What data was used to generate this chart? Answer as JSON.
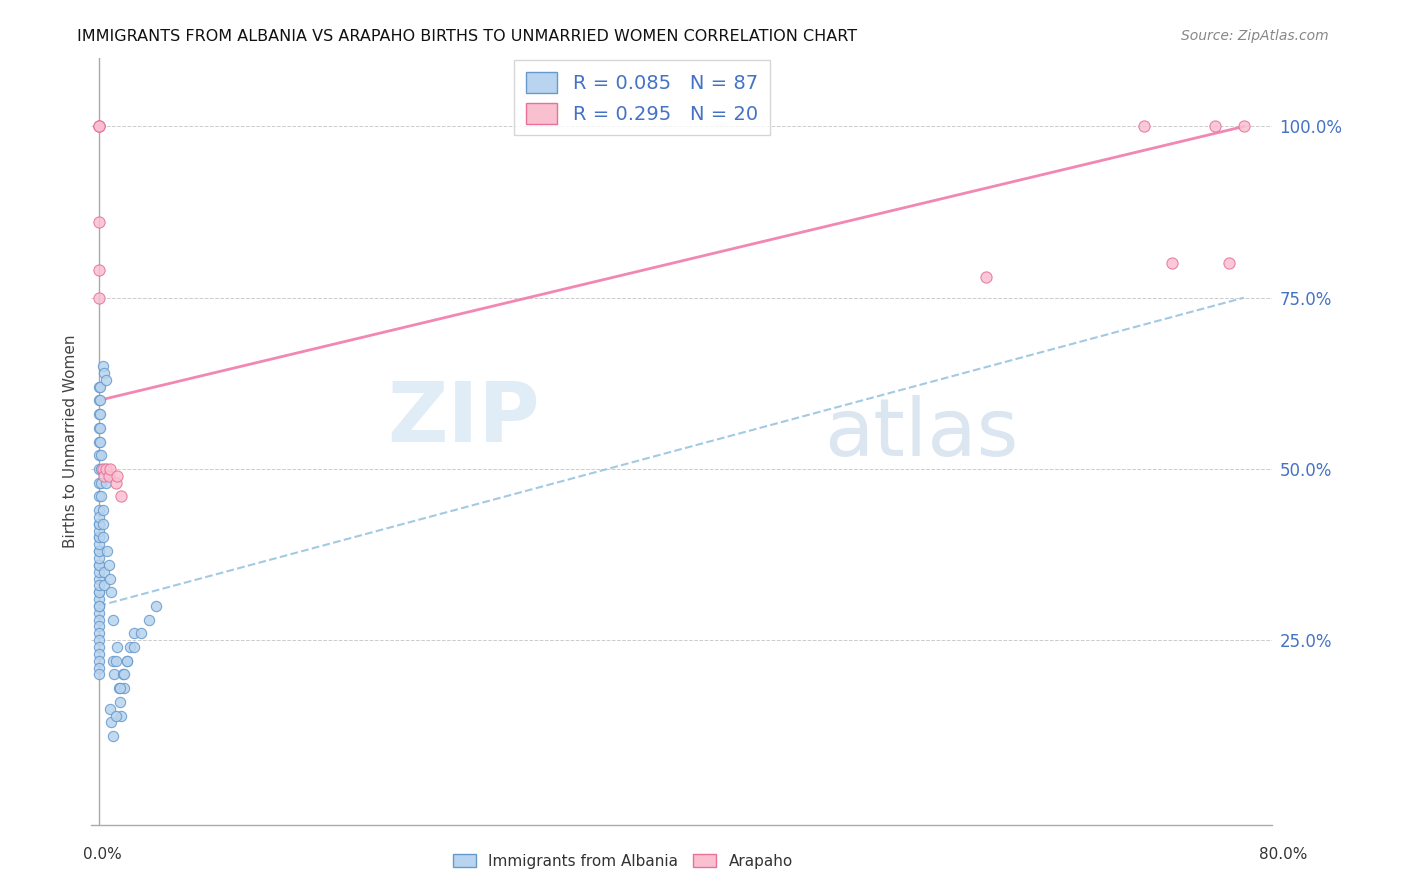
{
  "title": "IMMIGRANTS FROM ALBANIA VS ARAPAHO BIRTHS TO UNMARRIED WOMEN CORRELATION CHART",
  "source": "Source: ZipAtlas.com",
  "ylabel": "Births to Unmarried Women",
  "xlim": [
    -0.005,
    0.82
  ],
  "ylim": [
    -0.02,
    1.1
  ],
  "yticks": [
    0.25,
    0.5,
    0.75,
    1.0
  ],
  "ytick_labels": [
    "25.0%",
    "50.0%",
    "75.0%",
    "100.0%"
  ],
  "blue_color": "#7ab5e0",
  "blue_edge": "#5599cc",
  "pink_color": "#f9b8cc",
  "pink_edge": "#e8709a",
  "blue_trend_color": "#99c4e0",
  "pink_trend_color": "#f07aaa",
  "blue_trend": [
    0.0,
    0.8,
    0.3,
    0.75
  ],
  "pink_trend": [
    0.0,
    0.8,
    0.6,
    1.0
  ],
  "watermark_zip": "ZIP",
  "watermark_atlas": "atlas",
  "legend_top_labels": [
    "R = 0.085   N = 87",
    "R = 0.295   N = 20"
  ],
  "legend_bottom_labels": [
    "Immigrants from Albania",
    "Arapaho"
  ],
  "blue_scatter_x": [
    0.0,
    0.0,
    0.0,
    0.0,
    0.0,
    0.0,
    0.0,
    0.0,
    0.0,
    0.0,
    0.0,
    0.0,
    0.0,
    0.0,
    0.0,
    0.0,
    0.0,
    0.0,
    0.0,
    0.0,
    0.0,
    0.0,
    0.0,
    0.0,
    0.0,
    0.0,
    0.0,
    0.0,
    0.0,
    0.0,
    0.0,
    0.0,
    0.0,
    0.0,
    0.0,
    0.0,
    0.0,
    0.0,
    0.0,
    0.0,
    0.001,
    0.001,
    0.001,
    0.001,
    0.001,
    0.002,
    0.002,
    0.002,
    0.002,
    0.003,
    0.003,
    0.003,
    0.004,
    0.004,
    0.005,
    0.005,
    0.006,
    0.007,
    0.008,
    0.009,
    0.01,
    0.01,
    0.011,
    0.012,
    0.013,
    0.014,
    0.015,
    0.016,
    0.017,
    0.018,
    0.02,
    0.022,
    0.025,
    0.008,
    0.009,
    0.01,
    0.012,
    0.015,
    0.018,
    0.02,
    0.025,
    0.03,
    0.035,
    0.04,
    0.003,
    0.004,
    0.005
  ],
  "blue_scatter_y": [
    0.62,
    0.6,
    0.58,
    0.56,
    0.54,
    0.52,
    0.5,
    0.48,
    0.46,
    0.44,
    0.42,
    0.4,
    0.38,
    0.36,
    0.34,
    0.32,
    0.3,
    0.29,
    0.28,
    0.27,
    0.26,
    0.25,
    0.24,
    0.23,
    0.22,
    0.21,
    0.2,
    0.31,
    0.3,
    0.32,
    0.33,
    0.35,
    0.36,
    0.37,
    0.38,
    0.39,
    0.4,
    0.41,
    0.42,
    0.43,
    0.62,
    0.6,
    0.58,
    0.56,
    0.54,
    0.52,
    0.5,
    0.48,
    0.46,
    0.44,
    0.42,
    0.4,
    0.35,
    0.33,
    0.5,
    0.48,
    0.38,
    0.36,
    0.34,
    0.32,
    0.28,
    0.22,
    0.2,
    0.22,
    0.24,
    0.18,
    0.16,
    0.14,
    0.2,
    0.18,
    0.22,
    0.24,
    0.26,
    0.15,
    0.13,
    0.11,
    0.14,
    0.18,
    0.2,
    0.22,
    0.24,
    0.26,
    0.28,
    0.3,
    0.65,
    0.64,
    0.63
  ],
  "pink_scatter_x": [
    0.0,
    0.0,
    0.0,
    0.0,
    0.0,
    0.0,
    0.003,
    0.004,
    0.005,
    0.007,
    0.008,
    0.012,
    0.013,
    0.016,
    0.62,
    0.73,
    0.75,
    0.78,
    0.79,
    0.8
  ],
  "pink_scatter_y": [
    1.0,
    1.0,
    1.0,
    0.86,
    0.79,
    0.75,
    0.5,
    0.49,
    0.5,
    0.49,
    0.5,
    0.48,
    0.49,
    0.46,
    0.78,
    1.0,
    0.8,
    1.0,
    0.8,
    1.0
  ]
}
